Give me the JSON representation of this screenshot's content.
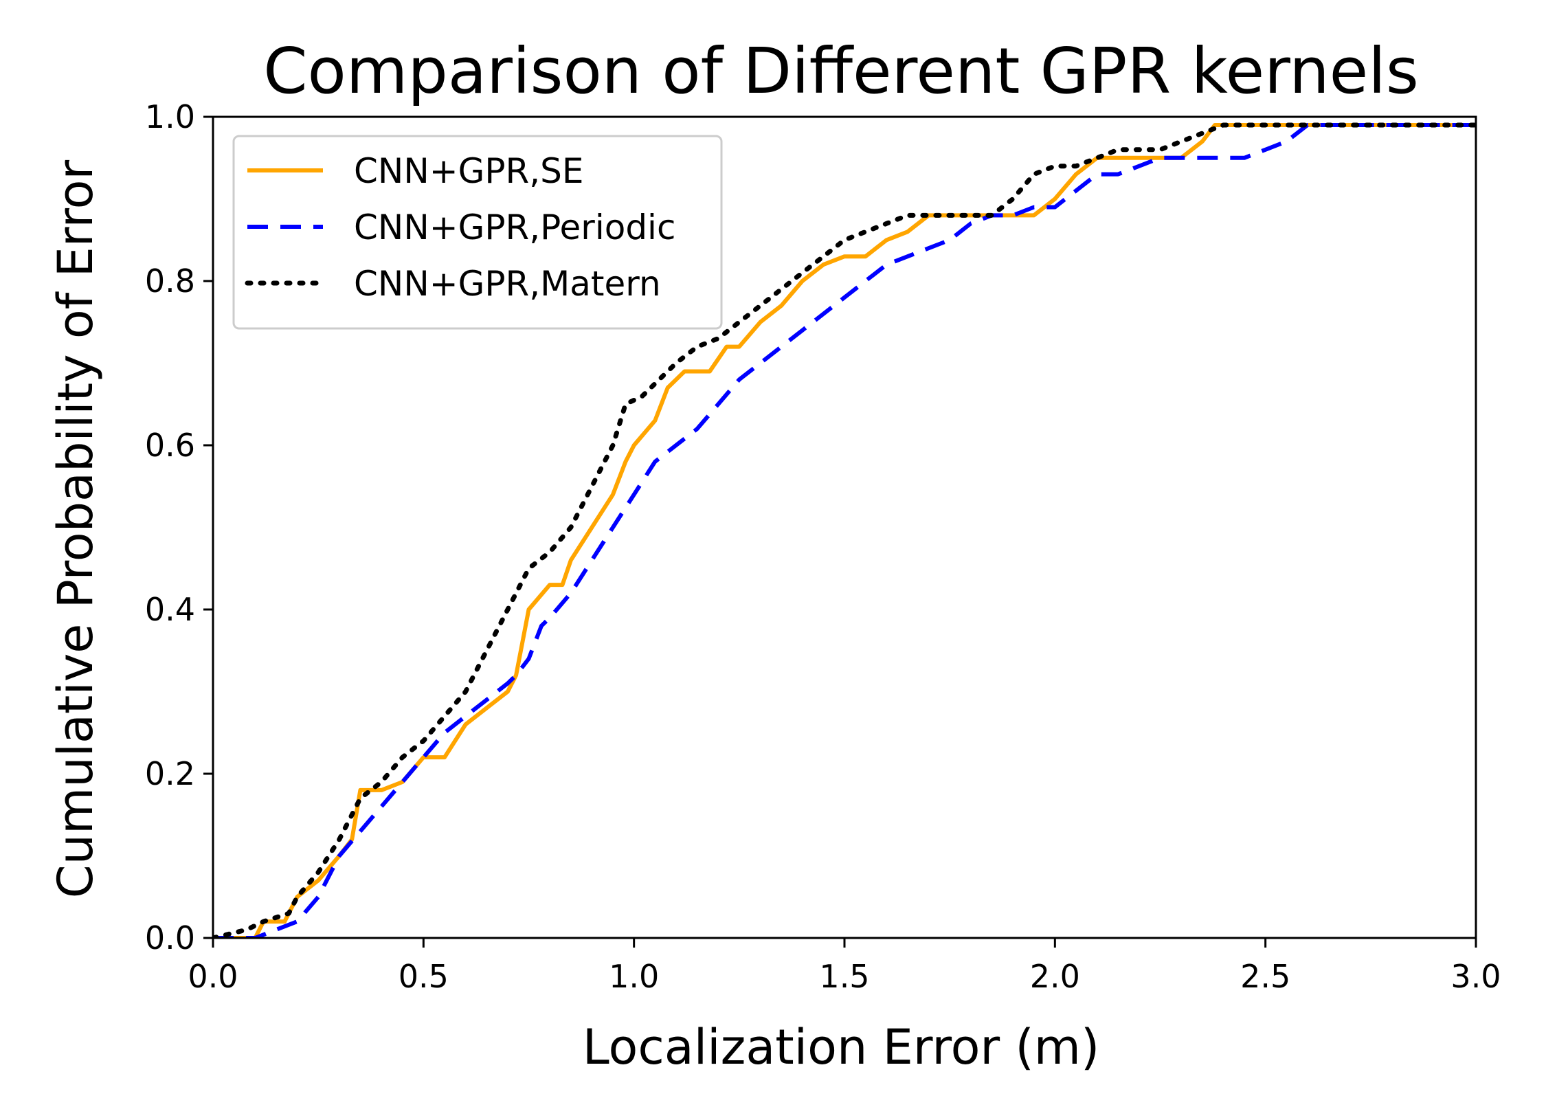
{
  "chart_data": {
    "type": "line",
    "title": "Comparison of Different GPR kernels",
    "xlabel": "Localization Error (m)",
    "ylabel": "Cumulative Probability of Error",
    "xlim": [
      0.0,
      3.0
    ],
    "ylim": [
      0.0,
      1.0
    ],
    "xticks": [
      0.0,
      0.5,
      1.0,
      1.5,
      2.0,
      2.5,
      3.0
    ],
    "xtick_labels": [
      "0.0",
      "0.5",
      "1.0",
      "1.5",
      "2.0",
      "2.5",
      "3.0"
    ],
    "yticks": [
      0.0,
      0.2,
      0.4,
      0.6,
      0.8,
      1.0
    ],
    "ytick_labels": [
      "0.0",
      "0.2",
      "0.4",
      "0.6",
      "0.8",
      "1.0"
    ],
    "grid": false,
    "legend_position": "upper-left",
    "series": [
      {
        "name": "CNN+GPR,SE",
        "color": "#ffa500",
        "style": "solid",
        "x": [
          0.0,
          0.1,
          0.12,
          0.17,
          0.2,
          0.25,
          0.3,
          0.33,
          0.35,
          0.4,
          0.45,
          0.5,
          0.55,
          0.6,
          0.65,
          0.7,
          0.72,
          0.75,
          0.8,
          0.83,
          0.85,
          0.9,
          0.95,
          0.98,
          1.0,
          1.05,
          1.08,
          1.12,
          1.18,
          1.22,
          1.25,
          1.3,
          1.35,
          1.4,
          1.45,
          1.5,
          1.55,
          1.6,
          1.65,
          1.7,
          1.75,
          1.8,
          1.85,
          1.9,
          1.95,
          2.0,
          2.05,
          2.1,
          2.15,
          2.2,
          2.25,
          2.3,
          2.35,
          2.38,
          2.45,
          2.5,
          2.55,
          2.6,
          3.0
        ],
        "y": [
          0.0,
          0.0,
          0.02,
          0.02,
          0.05,
          0.07,
          0.1,
          0.12,
          0.18,
          0.18,
          0.19,
          0.22,
          0.22,
          0.26,
          0.28,
          0.3,
          0.32,
          0.4,
          0.43,
          0.43,
          0.46,
          0.5,
          0.54,
          0.58,
          0.6,
          0.63,
          0.67,
          0.69,
          0.69,
          0.72,
          0.72,
          0.75,
          0.77,
          0.8,
          0.82,
          0.83,
          0.83,
          0.85,
          0.86,
          0.88,
          0.88,
          0.88,
          0.88,
          0.88,
          0.88,
          0.9,
          0.93,
          0.95,
          0.95,
          0.95,
          0.95,
          0.95,
          0.97,
          0.99,
          0.99,
          0.99,
          0.99,
          0.99,
          0.99
        ]
      },
      {
        "name": "CNN+GPR,Periodic",
        "color": "#0000ff",
        "style": "dashed",
        "x": [
          0.0,
          0.1,
          0.15,
          0.2,
          0.25,
          0.3,
          0.35,
          0.4,
          0.45,
          0.5,
          0.55,
          0.6,
          0.65,
          0.7,
          0.72,
          0.75,
          0.78,
          0.8,
          0.85,
          0.9,
          0.95,
          1.0,
          1.05,
          1.1,
          1.15,
          1.2,
          1.25,
          1.3,
          1.35,
          1.4,
          1.45,
          1.5,
          1.55,
          1.6,
          1.65,
          1.7,
          1.75,
          1.8,
          1.85,
          1.9,
          1.95,
          2.0,
          2.05,
          2.1,
          2.15,
          2.2,
          2.25,
          2.3,
          2.35,
          2.4,
          2.45,
          2.5,
          2.55,
          2.6,
          3.0
        ],
        "y": [
          0.0,
          0.0,
          0.01,
          0.02,
          0.05,
          0.1,
          0.13,
          0.16,
          0.19,
          0.22,
          0.25,
          0.27,
          0.29,
          0.31,
          0.32,
          0.34,
          0.38,
          0.39,
          0.42,
          0.46,
          0.5,
          0.54,
          0.58,
          0.6,
          0.62,
          0.65,
          0.68,
          0.7,
          0.72,
          0.74,
          0.76,
          0.78,
          0.8,
          0.82,
          0.83,
          0.84,
          0.85,
          0.87,
          0.88,
          0.88,
          0.89,
          0.89,
          0.91,
          0.93,
          0.93,
          0.94,
          0.95,
          0.95,
          0.95,
          0.95,
          0.95,
          0.96,
          0.97,
          0.99,
          0.99
        ]
      },
      {
        "name": "CNN+GPR,Matern",
        "color": "#000000",
        "style": "dotted",
        "x": [
          0.0,
          0.08,
          0.12,
          0.18,
          0.2,
          0.25,
          0.3,
          0.35,
          0.4,
          0.45,
          0.5,
          0.55,
          0.6,
          0.65,
          0.7,
          0.75,
          0.8,
          0.85,
          0.9,
          0.95,
          0.98,
          1.02,
          1.06,
          1.1,
          1.15,
          1.2,
          1.25,
          1.3,
          1.35,
          1.4,
          1.45,
          1.5,
          1.55,
          1.6,
          1.65,
          1.7,
          1.75,
          1.8,
          1.85,
          1.9,
          1.95,
          2.0,
          2.05,
          2.1,
          2.15,
          2.2,
          2.25,
          2.3,
          2.35,
          2.4,
          2.45,
          2.5,
          2.55,
          2.6,
          3.0
        ],
        "y": [
          0.0,
          0.01,
          0.02,
          0.03,
          0.05,
          0.08,
          0.12,
          0.17,
          0.19,
          0.22,
          0.24,
          0.27,
          0.3,
          0.35,
          0.4,
          0.45,
          0.47,
          0.5,
          0.55,
          0.6,
          0.65,
          0.66,
          0.68,
          0.7,
          0.72,
          0.73,
          0.75,
          0.77,
          0.79,
          0.81,
          0.83,
          0.85,
          0.86,
          0.87,
          0.88,
          0.88,
          0.88,
          0.88,
          0.88,
          0.9,
          0.93,
          0.94,
          0.94,
          0.95,
          0.96,
          0.96,
          0.96,
          0.97,
          0.98,
          0.99,
          0.99,
          0.99,
          0.99,
          0.99,
          0.99
        ]
      }
    ]
  }
}
